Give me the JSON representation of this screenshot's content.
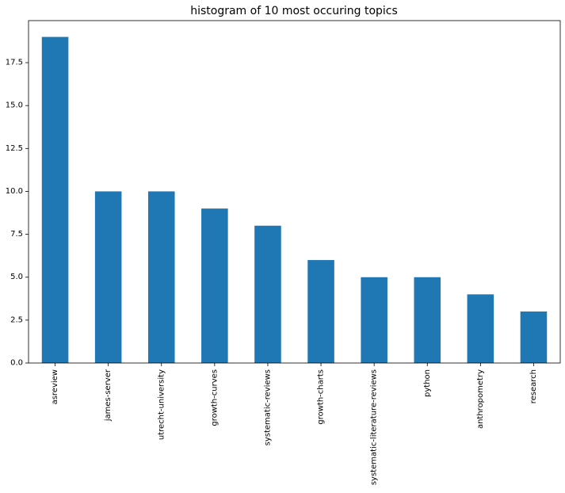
{
  "chart_data": {
    "type": "bar",
    "title": "histogram of 10 most occuring topics",
    "xlabel": "",
    "ylabel": "",
    "categories": [
      "asreview",
      "james-server",
      "utrecht-university",
      "growth-curves",
      "systematic-reviews",
      "growth-charts",
      "systematic-literature-reviews",
      "python",
      "anthropometry",
      "research"
    ],
    "values": [
      19,
      10,
      10,
      9,
      8,
      6,
      5,
      5,
      4,
      3
    ],
    "ylim": [
      0,
      19.95
    ],
    "yticks": [
      0.0,
      2.5,
      5.0,
      7.5,
      10.0,
      12.5,
      15.0,
      17.5
    ],
    "ytick_labels": [
      "0.0",
      "2.5",
      "5.0",
      "7.5",
      "10.0",
      "12.5",
      "15.0",
      "17.5"
    ],
    "bar_color": "#1f77b4",
    "grid": false,
    "legend": "none"
  }
}
